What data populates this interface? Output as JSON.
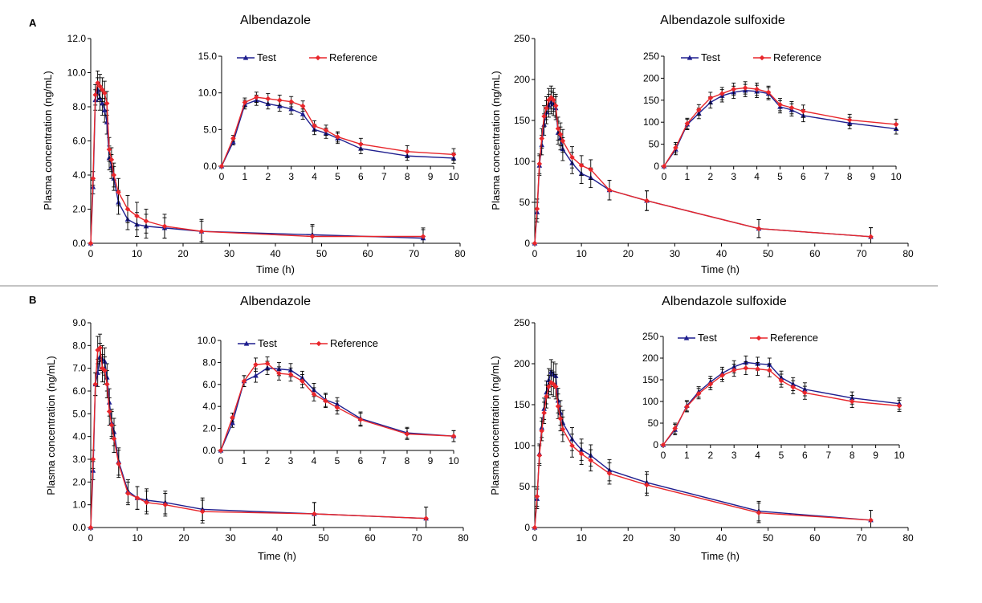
{
  "figure": {
    "panels": [
      {
        "id": "A",
        "label": "A"
      },
      {
        "id": "B",
        "label": "B"
      }
    ]
  },
  "chart_data": [
    {
      "panel": "A",
      "type": "line",
      "title": "Albendazole",
      "xlabel": "Time (h)",
      "ylabel": "Plasma concentration (ng/mL)",
      "xlim": [
        0,
        80
      ],
      "ylim": [
        0,
        12
      ],
      "xticks": [
        0,
        10,
        20,
        30,
        40,
        50,
        60,
        70,
        80
      ],
      "yticks": [
        "0.0",
        "2.0",
        "4.0",
        "6.0",
        "8.0",
        "10.0",
        "12.0"
      ],
      "series": [
        {
          "name": "Test",
          "color": "#1f1f8f",
          "marker": "triangle",
          "x": [
            0,
            0.5,
            1,
            1.5,
            2,
            2.5,
            3,
            3.5,
            4,
            4.5,
            5,
            6,
            8,
            10,
            12,
            16,
            24,
            48,
            72
          ],
          "y": [
            0,
            3.3,
            8.4,
            9.0,
            8.5,
            8.2,
            7.8,
            7.1,
            5.0,
            4.5,
            3.8,
            2.4,
            1.4,
            1.1,
            1.0,
            0.9,
            0.7,
            0.5,
            0.3
          ],
          "err": [
            0,
            0.4,
            0.6,
            0.7,
            0.7,
            0.7,
            0.7,
            0.7,
            0.7,
            0.7,
            0.7,
            0.7,
            0.6,
            0.7,
            0.7,
            0.6,
            0.6,
            0.6,
            0.5
          ]
        },
        {
          "name": "Reference",
          "color": "#e8262b",
          "marker": "diamond",
          "x": [
            0,
            0.5,
            1,
            1.5,
            2,
            2.5,
            3,
            3.5,
            4,
            4.5,
            5,
            6,
            8,
            10,
            12,
            16,
            24,
            48,
            72
          ],
          "y": [
            0,
            3.8,
            8.7,
            9.4,
            9.2,
            9.0,
            8.8,
            8.2,
            5.5,
            4.9,
            4.0,
            3.0,
            2.0,
            1.6,
            1.3,
            1.0,
            0.7,
            0.4,
            0.4
          ],
          "err": [
            0,
            0.4,
            0.6,
            0.7,
            0.7,
            0.7,
            0.7,
            0.7,
            0.7,
            0.7,
            0.7,
            0.8,
            0.8,
            0.8,
            0.7,
            0.7,
            0.7,
            0.6,
            0.5
          ]
        }
      ],
      "inset": {
        "xlim": [
          0,
          10
        ],
        "ylim": [
          0,
          15
        ],
        "xticks": [
          0,
          1,
          2,
          3,
          4,
          5,
          6,
          7,
          8,
          9,
          10
        ],
        "yticks": [
          "0.0",
          "5.0",
          "10.0",
          "15.0"
        ],
        "legend": [
          "Test",
          "Reference"
        ]
      }
    },
    {
      "panel": "A",
      "type": "line",
      "title": "Albendazole sulfoxide",
      "xlabel": "Time (h)",
      "ylabel": "Plasma concentration (ng/mL)",
      "xlim": [
        0,
        80
      ],
      "ylim": [
        0,
        250
      ],
      "xticks": [
        0,
        10,
        20,
        30,
        40,
        50,
        60,
        70,
        80
      ],
      "yticks": [
        "0",
        "50",
        "100",
        "150",
        "200",
        "250"
      ],
      "series": [
        {
          "name": "Test",
          "color": "#1f1f8f",
          "marker": "triangle",
          "x": [
            0,
            0.5,
            1,
            1.5,
            2,
            2.5,
            3,
            3.5,
            4,
            4.5,
            5,
            5.5,
            6,
            8,
            10,
            12,
            16,
            24,
            48,
            72
          ],
          "y": [
            0,
            38,
            95,
            120,
            145,
            160,
            168,
            172,
            170,
            165,
            135,
            128,
            115,
            98,
            85,
            80,
            65,
            52,
            18,
            8
          ],
          "err": [
            0,
            12,
            12,
            12,
            13,
            14,
            14,
            14,
            14,
            14,
            14,
            14,
            14,
            13,
            12,
            12,
            12,
            12,
            11,
            11
          ]
        },
        {
          "name": "Reference",
          "color": "#e8262b",
          "marker": "diamond",
          "x": [
            0,
            0.5,
            1,
            1.5,
            2,
            2.5,
            3,
            3.5,
            4,
            4.5,
            5,
            5.5,
            6,
            8,
            10,
            12,
            16,
            24,
            48,
            72
          ],
          "y": [
            0,
            42,
            97,
            128,
            155,
            165,
            175,
            178,
            175,
            168,
            140,
            133,
            125,
            105,
            95,
            90,
            65,
            52,
            18,
            8
          ],
          "err": [
            0,
            12,
            12,
            12,
            13,
            14,
            14,
            14,
            14,
            14,
            14,
            14,
            14,
            13,
            12,
            12,
            12,
            12,
            11,
            11
          ]
        }
      ],
      "inset": {
        "xlim": [
          0,
          10
        ],
        "ylim": [
          0,
          250
        ],
        "xticks": [
          0,
          1,
          2,
          3,
          4,
          5,
          6,
          7,
          8,
          9,
          10
        ],
        "yticks": [
          "0",
          "50",
          "100",
          "150",
          "200",
          "250"
        ],
        "legend": [
          "Test",
          "Reference"
        ]
      }
    },
    {
      "panel": "B",
      "type": "line",
      "title": "Albendazole",
      "xlabel": "Time (h)",
      "ylabel": "Plasma concentration (ng/mL)",
      "xlim": [
        0,
        80
      ],
      "ylim": [
        0,
        9
      ],
      "xticks": [
        0,
        10,
        20,
        30,
        40,
        50,
        60,
        70,
        80
      ],
      "yticks": [
        "0.0",
        "1.0",
        "2.0",
        "3.0",
        "4.0",
        "5.0",
        "6.0",
        "7.0",
        "8.0",
        "9.0"
      ],
      "series": [
        {
          "name": "Test",
          "color": "#1f1f8f",
          "marker": "triangle",
          "x": [
            0,
            0.5,
            1,
            1.5,
            2,
            2.5,
            3,
            3.5,
            4,
            4.5,
            5,
            6,
            8,
            10,
            12,
            16,
            24,
            48,
            72
          ],
          "y": [
            0,
            2.5,
            6.3,
            6.8,
            7.5,
            7.4,
            7.3,
            6.6,
            5.5,
            4.6,
            4.2,
            2.9,
            1.6,
            1.3,
            1.2,
            1.1,
            0.8,
            0.6,
            0.4
          ],
          "err": [
            0,
            0.4,
            0.5,
            0.6,
            0.6,
            0.6,
            0.6,
            0.6,
            0.6,
            0.6,
            0.6,
            0.6,
            0.5,
            0.5,
            0.5,
            0.5,
            0.5,
            0.5,
            0.5
          ]
        },
        {
          "name": "Reference",
          "color": "#e8262b",
          "marker": "diamond",
          "x": [
            0,
            0.5,
            1,
            1.5,
            2,
            2.5,
            3,
            3.5,
            4,
            4.5,
            5,
            6,
            8,
            10,
            12,
            16,
            24,
            48,
            72
          ],
          "y": [
            0,
            3.0,
            6.3,
            7.8,
            7.9,
            7.0,
            6.9,
            6.3,
            5.1,
            4.5,
            3.9,
            2.8,
            1.5,
            1.3,
            1.1,
            1.0,
            0.7,
            0.6,
            0.4
          ],
          "err": [
            0,
            0.4,
            0.5,
            0.6,
            0.6,
            0.6,
            0.6,
            0.6,
            0.6,
            0.6,
            0.6,
            0.6,
            0.5,
            0.5,
            0.5,
            0.5,
            0.5,
            0.5,
            0.5
          ]
        }
      ],
      "inset": {
        "xlim": [
          0,
          10
        ],
        "ylim": [
          0,
          10
        ],
        "xticks": [
          0,
          1,
          2,
          3,
          4,
          5,
          6,
          7,
          8,
          9,
          10
        ],
        "yticks": [
          "0.0",
          "2.0",
          "4.0",
          "6.0",
          "8.0",
          "10.0"
        ],
        "legend": [
          "Test",
          "Reference"
        ]
      }
    },
    {
      "panel": "B",
      "type": "line",
      "title": "Albendazole sulfoxide",
      "xlabel": "Time (h)",
      "ylabel": "Plasma concentration (ng/mL)",
      "xlim": [
        0,
        80
      ],
      "ylim": [
        0,
        250
      ],
      "xticks": [
        0,
        10,
        20,
        30,
        40,
        50,
        60,
        70,
        80
      ],
      "yticks": [
        "0",
        "50",
        "100",
        "150",
        "200",
        "250"
      ],
      "series": [
        {
          "name": "Test",
          "color": "#1f1f8f",
          "marker": "triangle",
          "x": [
            0,
            0.5,
            1,
            1.5,
            2,
            2.5,
            3,
            3.5,
            4,
            4.5,
            5,
            5.5,
            6,
            8,
            10,
            12,
            16,
            24,
            48,
            72
          ],
          "y": [
            0,
            35,
            90,
            122,
            145,
            165,
            180,
            190,
            187,
            185,
            155,
            140,
            128,
            108,
            95,
            88,
            70,
            55,
            20,
            9
          ],
          "err": [
            0,
            12,
            12,
            12,
            13,
            14,
            14,
            15,
            15,
            15,
            15,
            15,
            15,
            14,
            13,
            13,
            13,
            13,
            12,
            12
          ]
        },
        {
          "name": "Reference",
          "color": "#e8262b",
          "marker": "diamond",
          "x": [
            0,
            0.5,
            1,
            1.5,
            2,
            2.5,
            3,
            3.5,
            4,
            4.5,
            5,
            5.5,
            6,
            8,
            10,
            12,
            16,
            24,
            48,
            72
          ],
          "y": [
            0,
            38,
            88,
            118,
            140,
            160,
            172,
            177,
            175,
            172,
            148,
            133,
            120,
            100,
            90,
            82,
            66,
            52,
            18,
            9
          ],
          "err": [
            0,
            12,
            12,
            12,
            13,
            14,
            14,
            15,
            15,
            15,
            15,
            15,
            15,
            14,
            13,
            13,
            13,
            13,
            12,
            12
          ]
        }
      ],
      "inset": {
        "xlim": [
          0,
          10
        ],
        "ylim": [
          0,
          250
        ],
        "xticks": [
          0,
          1,
          2,
          3,
          4,
          5,
          6,
          7,
          8,
          9,
          10
        ],
        "yticks": [
          "0",
          "50",
          "100",
          "150",
          "200",
          "250"
        ],
        "legend": [
          "Test",
          "Reference"
        ]
      }
    }
  ]
}
